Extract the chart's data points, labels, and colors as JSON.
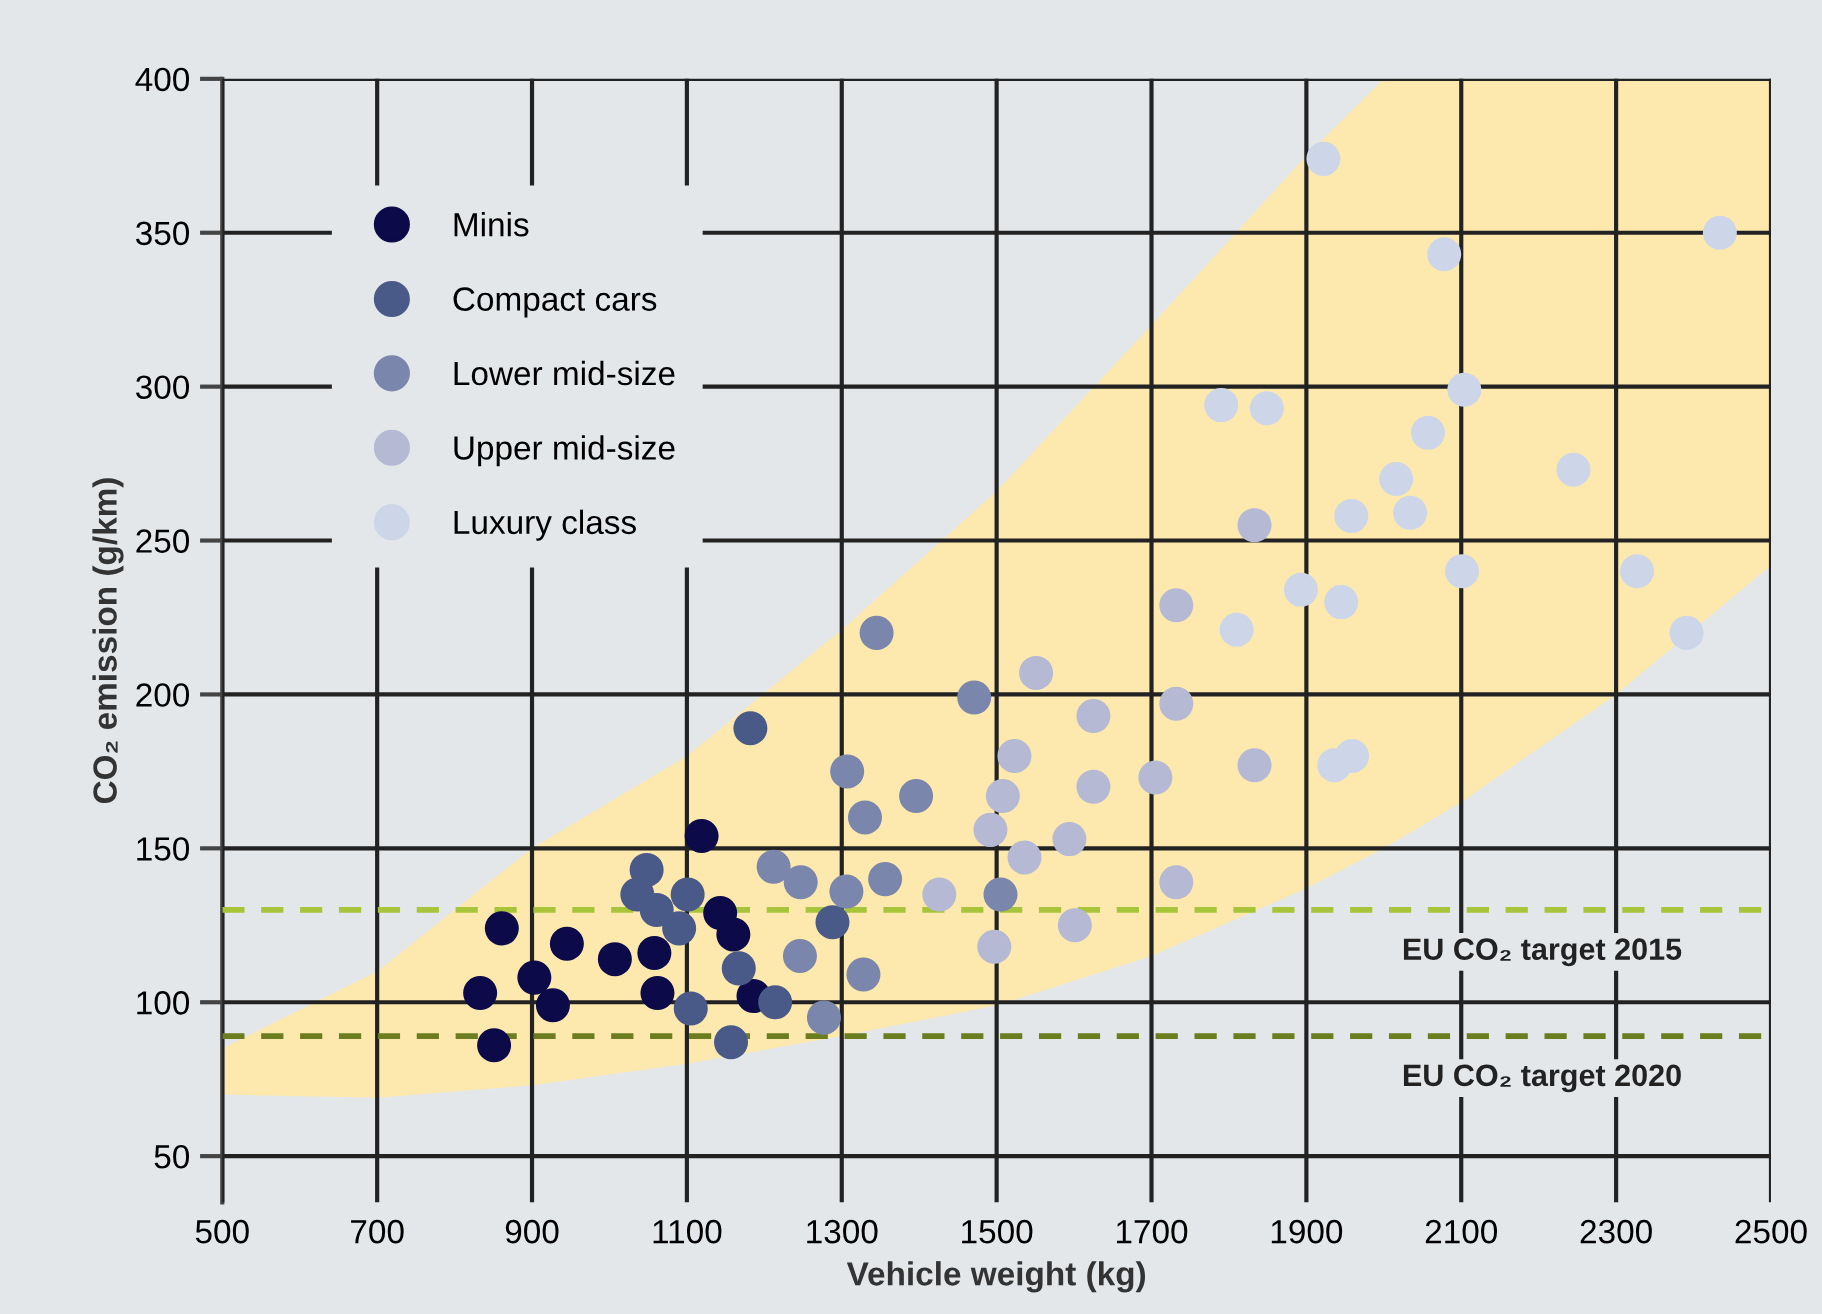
{
  "chart_data": {
    "type": "scatter",
    "xlabel": "Vehicle weight (kg)",
    "ylabel": "CO₂ emission (g/km)",
    "xlim": [
      500,
      2500
    ],
    "xticks": [
      500,
      700,
      900,
      1100,
      1300,
      1500,
      1700,
      1900,
      2100,
      2300,
      2500
    ],
    "ylim": [
      35,
      400
    ],
    "yticks": [
      50,
      100,
      150,
      200,
      250,
      300,
      350,
      400
    ],
    "grid": true,
    "legend": "top left",
    "series": [
      {
        "type": "area",
        "color": "#fde9ae",
        "x": [
          500,
          700,
          900,
          1100,
          1300,
          1500,
          1700,
          1900,
          2000,
          2100,
          2300,
          2500
        ],
        "values": [
          85,
          110,
          150,
          180,
          221,
          266,
          320,
          375,
          400,
          400,
          400,
          400
        ]
      },
      {
        "type": "area",
        "color": "#e3e7ea",
        "x": [
          500,
          700,
          900,
          1100,
          1300,
          1500,
          1700,
          1900,
          2000,
          2100,
          2300,
          2500
        ],
        "values": [
          70,
          69,
          73,
          80,
          89,
          99,
          115,
          137,
          150,
          165,
          200,
          242
        ]
      },
      {
        "name": "Minis",
        "marker": "circle",
        "color": "#0d0a4a",
        "x": [
          861,
          833,
          903,
          927,
          851,
          945,
          1007,
          1058,
          1062,
          1119,
          1143,
          1160,
          1186
        ],
        "values": [
          124,
          103,
          108,
          99,
          86,
          119,
          114,
          116,
          103,
          154,
          129,
          122,
          102
        ]
      },
      {
        "name": "Compact cars",
        "marker": "circle",
        "color": "#4a5a88",
        "x": [
          1182,
          1048,
          1036,
          1061,
          1101,
          1090,
          1167,
          1214,
          1105,
          1157,
          1288
        ],
        "values": [
          189,
          143,
          135,
          130,
          135,
          124,
          111,
          100,
          98,
          87,
          126
        ]
      },
      {
        "name": "Lower mid-size",
        "marker": "circle",
        "color": "#7a86ab",
        "x": [
          1212,
          1247,
          1307,
          1330,
          1396,
          1306,
          1356,
          1246,
          1328,
          1277,
          1471,
          1345,
          1505
        ],
        "values": [
          144,
          139,
          175,
          160,
          167,
          136,
          140,
          115,
          109,
          95,
          199,
          220,
          135
        ]
      },
      {
        "name": "Upper mid-size",
        "marker": "circle",
        "color": "#b5b9d3",
        "x": [
          1551,
          1625,
          1523,
          1508,
          1625,
          1492,
          1536,
          1594,
          1705,
          1732,
          1732,
          1833,
          1833,
          1732,
          1426,
          1601,
          1497
        ],
        "values": [
          207,
          193,
          180,
          167,
          170,
          156,
          147,
          153,
          173,
          229,
          197,
          255,
          177,
          139,
          135,
          125,
          118
        ]
      },
      {
        "name": "Luxury class",
        "marker": "circle",
        "color": "#cdd6e8",
        "x": [
          1790,
          1849,
          2104,
          2057,
          2016,
          1958,
          2034,
          2101,
          1893,
          1945,
          1810,
          1936,
          1959,
          2245,
          2078,
          2434,
          2327,
          2391,
          1922
        ],
        "values": [
          294,
          293,
          299,
          285,
          270,
          258,
          259,
          240,
          234,
          230,
          221,
          177,
          180,
          273,
          343,
          350,
          240,
          220,
          374
        ]
      }
    ],
    "ref_lines": [
      {
        "axis": "y",
        "value": 130,
        "label": "EU CO₂ target 2015",
        "color": "#a8c43a",
        "line_style": "dashed"
      },
      {
        "axis": "y",
        "value": 89,
        "label": "EU CO₂ target 2020",
        "color": "#6b7d1e",
        "line_style": "dashed"
      }
    ]
  }
}
